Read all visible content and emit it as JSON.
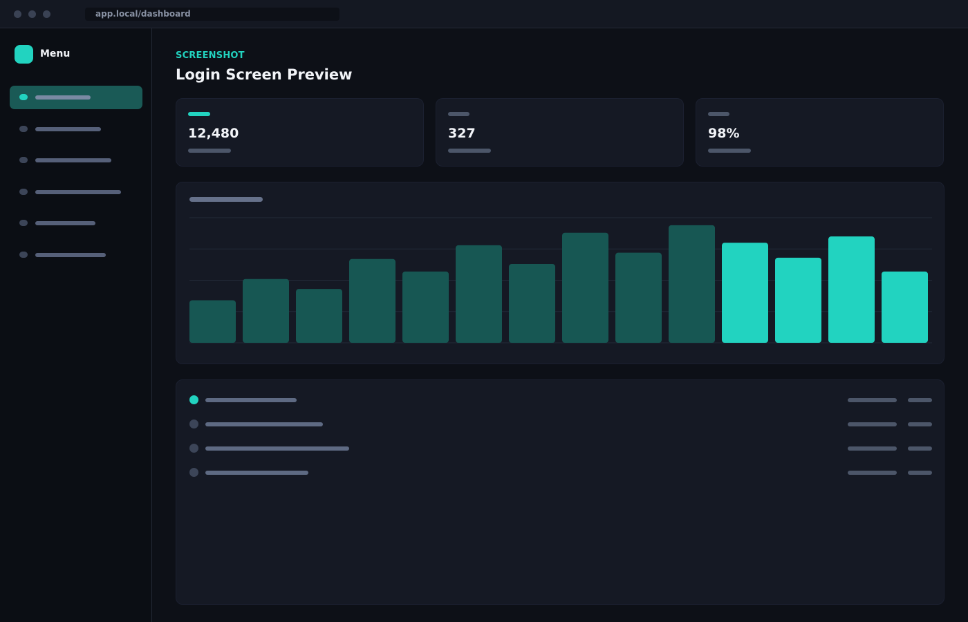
{
  "browser": {
    "url": "app.local/dashboard"
  },
  "sidebar": {
    "title": "Menu",
    "items": [
      {
        "active": true
      },
      {
        "active": false
      },
      {
        "active": false
      },
      {
        "active": false
      },
      {
        "active": false
      },
      {
        "active": false
      }
    ]
  },
  "header": {
    "eyebrow": "SCREENSHOT",
    "title": "Login Screen Preview"
  },
  "stats": [
    {
      "value": "12,480",
      "accent": true
    },
    {
      "value": "327",
      "accent": false
    },
    {
      "value": "98%",
      "accent": false
    }
  ],
  "chart_data": {
    "type": "bar",
    "values": [
      34,
      51,
      43,
      67,
      57,
      78,
      63,
      88,
      72,
      94,
      80,
      68,
      85,
      57
    ],
    "highlighted_from_index": 10,
    "ylim": [
      0,
      100
    ],
    "grid": true,
    "colors": {
      "muted": "#175753",
      "highlight": "#22d3c0"
    }
  },
  "list": {
    "rows": [
      {
        "accent": true
      },
      {
        "accent": false
      },
      {
        "accent": false
      },
      {
        "accent": false
      }
    ]
  },
  "colors": {
    "accent": "#22d3c0",
    "background": "#0d1017",
    "card": "#151924"
  }
}
